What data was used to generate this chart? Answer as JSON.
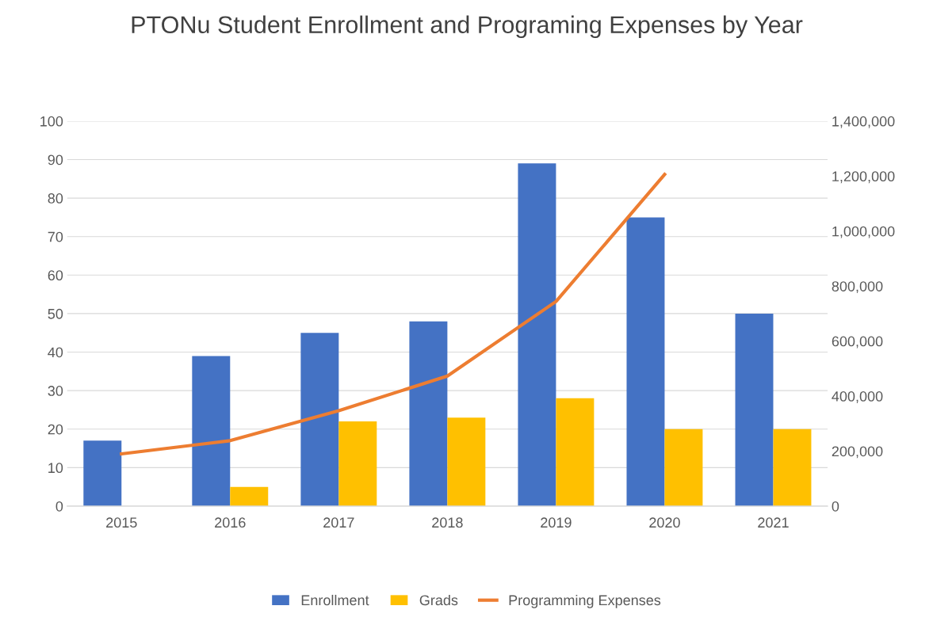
{
  "chart_data": {
    "type": "bar",
    "title": "PTONu Student Enrollment and Programing Expenses by Year",
    "categories": [
      "2015",
      "2016",
      "2017",
      "2018",
      "2019",
      "2020",
      "2021"
    ],
    "series": [
      {
        "name": "Enrollment",
        "color": "#4472c4",
        "values": [
          17,
          39,
          45,
          48,
          89,
          75,
          50
        ]
      },
      {
        "name": "Grads",
        "color": "#ffc000",
        "values": [
          null,
          5,
          22,
          23,
          28,
          20,
          20
        ]
      },
      {
        "name": "Programming Expenses",
        "color": "#ed7d31",
        "type": "line",
        "axis": "y2",
        "values": [
          190000,
          238000,
          347000,
          473000,
          744000,
          1206000,
          null
        ]
      }
    ],
    "ylim": [
      0,
      100
    ],
    "yticks": [
      0,
      10,
      20,
      30,
      40,
      50,
      60,
      70,
      80,
      90,
      100
    ],
    "y2lim": [
      0,
      1400000
    ],
    "y2ticks": [
      {
        "value": 0,
        "label": "0"
      },
      {
        "value": 200000,
        "label": "200,000"
      },
      {
        "value": 400000,
        "label": "400,000"
      },
      {
        "value": 600000,
        "label": "600,000"
      },
      {
        "value": 800000,
        "label": "800,000"
      },
      {
        "value": 1000000,
        "label": "1,000,000"
      },
      {
        "value": 1200000,
        "label": "1,200,000"
      },
      {
        "value": 1400000,
        "label": "1,400,000"
      }
    ],
    "grid": "y",
    "legend": "bottom",
    "marker": "none",
    "line_style": "solid"
  }
}
